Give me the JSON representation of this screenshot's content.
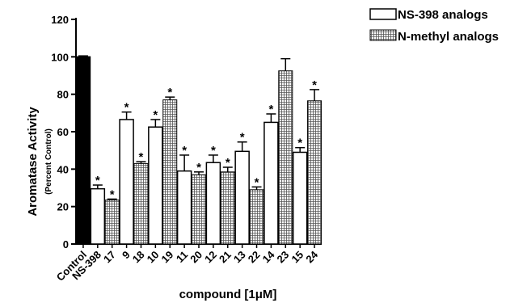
{
  "chart_data": {
    "type": "bar",
    "categories": [
      "Control",
      "NS-398",
      "17",
      "9",
      "18",
      "10",
      "19",
      "11",
      "20",
      "12",
      "21",
      "13",
      "22",
      "14",
      "23",
      "15",
      "24"
    ],
    "values": [
      100,
      29.5,
      23.5,
      66.5,
      43,
      62.5,
      77,
      39,
      37,
      43.5,
      38.5,
      49.5,
      29,
      65,
      92.5,
      49,
      76.5
    ],
    "errors": [
      0.5,
      2,
      0.5,
      4,
      1,
      4,
      1.5,
      8.5,
      1.5,
      4,
      2.5,
      5,
      1.5,
      4.5,
      6.5,
      2.5,
      6
    ],
    "groups": [
      "control",
      "ns398",
      "nmethyl",
      "ns398",
      "nmethyl",
      "ns398",
      "nmethyl",
      "ns398",
      "nmethyl",
      "ns398",
      "nmethyl",
      "ns398",
      "nmethyl",
      "ns398",
      "nmethyl",
      "ns398",
      "nmethyl"
    ],
    "significant": [
      false,
      true,
      true,
      true,
      true,
      true,
      true,
      true,
      true,
      true,
      true,
      true,
      true,
      true,
      false,
      true,
      true
    ],
    "significance_marker": "*",
    "ylabel": "Aromatase Activity",
    "ylabel_sub": "(Percent Control)",
    "xlabel": "compound [1μM]",
    "ylim": [
      0,
      120
    ],
    "yticks": [
      0,
      20,
      40,
      60,
      80,
      100,
      120
    ],
    "legend": {
      "placement": "top-right",
      "entries": [
        {
          "group": "ns398",
          "label": "NS-398 analogs"
        },
        {
          "group": "nmethyl",
          "label": "N-methyl analogs"
        }
      ]
    },
    "colors": {
      "control": "#000000",
      "ns398": "#ffffff",
      "nmethyl_grid": "#555555",
      "axis": "#000000"
    },
    "grid": false
  }
}
